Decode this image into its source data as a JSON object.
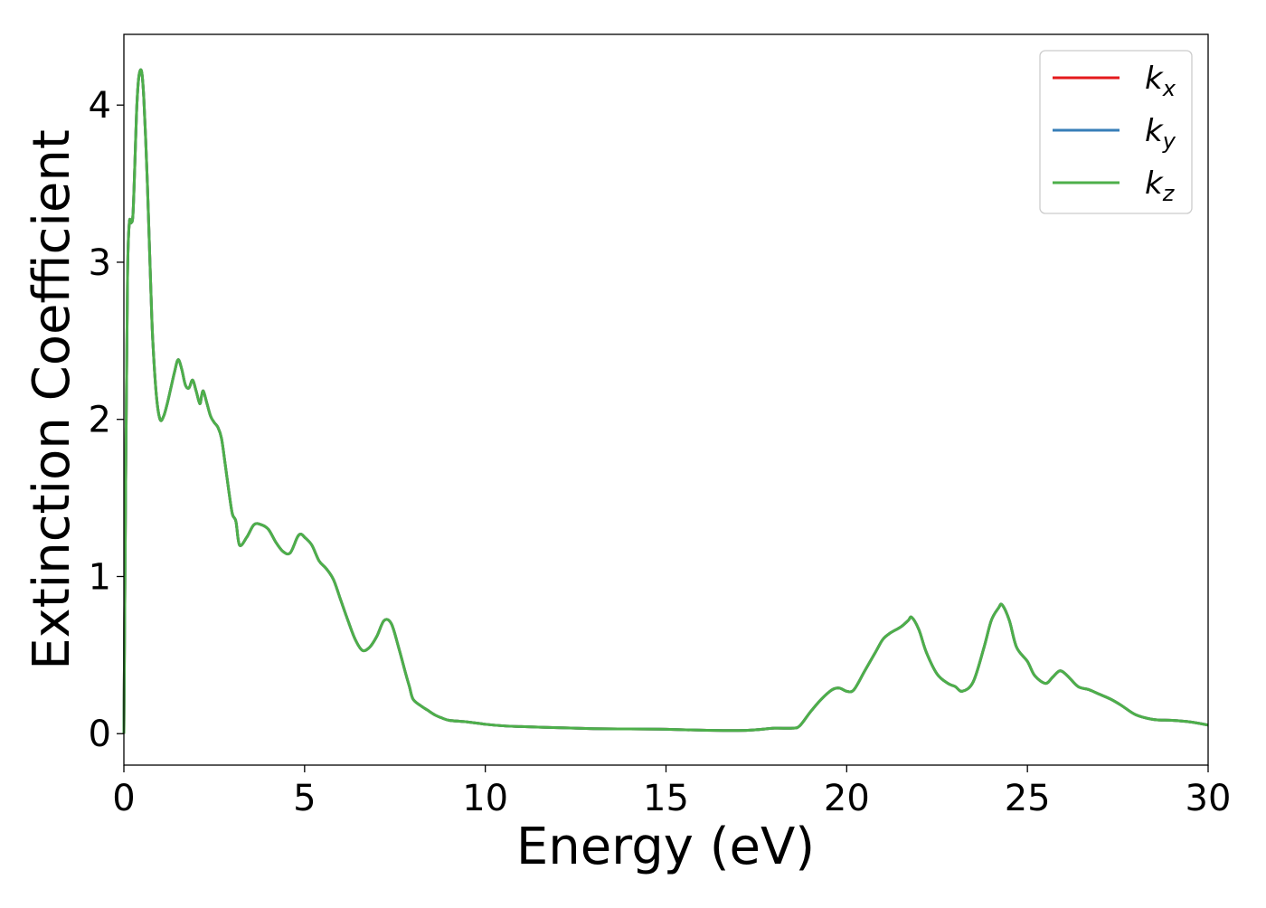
{
  "chart_data": {
    "type": "line",
    "title": "",
    "xlabel": "Energy (eV)",
    "ylabel": "Extinction Coefficient",
    "xlim": [
      0,
      30
    ],
    "ylim": [
      -0.2,
      4.45
    ],
    "xticks": [
      0,
      5,
      10,
      15,
      20,
      25,
      30
    ],
    "xtick_labels": [
      "0",
      "5",
      "10",
      "15",
      "20",
      "25",
      "30"
    ],
    "yticks": [
      0,
      1,
      2,
      3,
      4
    ],
    "ytick_labels": [
      "0",
      "1",
      "2",
      "3",
      "4"
    ],
    "grid": false,
    "legend_position": "top-right",
    "x": [
      0,
      0.05,
      0.1,
      0.15,
      0.2,
      0.25,
      0.3,
      0.35,
      0.4,
      0.45,
      0.5,
      0.55,
      0.6,
      0.65,
      0.7,
      0.75,
      0.8,
      0.9,
      1.0,
      1.1,
      1.2,
      1.3,
      1.4,
      1.5,
      1.6,
      1.7,
      1.8,
      1.9,
      2.0,
      2.1,
      2.15,
      2.2,
      2.3,
      2.4,
      2.5,
      2.6,
      2.7,
      2.8,
      2.9,
      3.0,
      3.1,
      3.2,
      3.4,
      3.6,
      3.8,
      4.0,
      4.2,
      4.4,
      4.6,
      4.8,
      4.9,
      5.0,
      5.2,
      5.4,
      5.6,
      5.8,
      6.0,
      6.2,
      6.4,
      6.6,
      6.8,
      7.0,
      7.2,
      7.4,
      7.6,
      7.8,
      7.9,
      8.0,
      8.2,
      8.4,
      8.6,
      8.8,
      9.0,
      9.5,
      10,
      10.5,
      11,
      12,
      13,
      14,
      15,
      16,
      17,
      17.5,
      18,
      18.5,
      18.7,
      19,
      19.3,
      19.6,
      19.8,
      20,
      20.2,
      20.5,
      20.8,
      21,
      21.2,
      21.5,
      21.7,
      21.8,
      22,
      22.2,
      22.5,
      22.8,
      23,
      23.2,
      23.5,
      23.8,
      24,
      24.2,
      24.3,
      24.5,
      24.7,
      25,
      25.2,
      25.5,
      25.7,
      25.9,
      26.1,
      26.4,
      26.7,
      27,
      27.3,
      27.6,
      28,
      28.5,
      29,
      29.5,
      30
    ],
    "series": [
      {
        "name": "k_x",
        "color": "#e41a1c",
        "values": [
          0.0,
          1.6,
          2.9,
          3.25,
          3.25,
          3.3,
          3.6,
          3.95,
          4.15,
          4.22,
          4.2,
          4.05,
          3.8,
          3.5,
          3.15,
          2.8,
          2.5,
          2.15,
          2.0,
          2.02,
          2.1,
          2.2,
          2.3,
          2.38,
          2.32,
          2.22,
          2.2,
          2.25,
          2.18,
          2.1,
          2.15,
          2.18,
          2.1,
          2.02,
          1.98,
          1.95,
          1.88,
          1.72,
          1.55,
          1.4,
          1.35,
          1.2,
          1.25,
          1.33,
          1.33,
          1.3,
          1.22,
          1.16,
          1.15,
          1.25,
          1.27,
          1.25,
          1.2,
          1.1,
          1.05,
          0.98,
          0.85,
          0.72,
          0.6,
          0.53,
          0.55,
          0.62,
          0.72,
          0.7,
          0.55,
          0.38,
          0.3,
          0.22,
          0.18,
          0.15,
          0.12,
          0.1,
          0.085,
          0.075,
          0.06,
          0.05,
          0.045,
          0.038,
          0.032,
          0.03,
          0.028,
          0.022,
          0.02,
          0.025,
          0.035,
          0.035,
          0.05,
          0.14,
          0.22,
          0.28,
          0.29,
          0.27,
          0.28,
          0.4,
          0.52,
          0.6,
          0.64,
          0.68,
          0.72,
          0.74,
          0.66,
          0.52,
          0.38,
          0.32,
          0.3,
          0.27,
          0.33,
          0.55,
          0.72,
          0.8,
          0.82,
          0.72,
          0.55,
          0.46,
          0.37,
          0.32,
          0.36,
          0.4,
          0.37,
          0.3,
          0.28,
          0.25,
          0.22,
          0.18,
          0.12,
          0.09,
          0.085,
          0.075,
          0.055
        ]
      },
      {
        "name": "k_y",
        "color": "#377eb8",
        "values": [
          0.0,
          1.6,
          2.9,
          3.25,
          3.25,
          3.3,
          3.6,
          3.95,
          4.15,
          4.22,
          4.2,
          4.05,
          3.8,
          3.5,
          3.15,
          2.8,
          2.5,
          2.15,
          2.0,
          2.02,
          2.1,
          2.2,
          2.3,
          2.38,
          2.32,
          2.22,
          2.2,
          2.25,
          2.18,
          2.1,
          2.15,
          2.18,
          2.1,
          2.02,
          1.98,
          1.95,
          1.88,
          1.72,
          1.55,
          1.4,
          1.35,
          1.2,
          1.25,
          1.33,
          1.33,
          1.3,
          1.22,
          1.16,
          1.15,
          1.25,
          1.27,
          1.25,
          1.2,
          1.1,
          1.05,
          0.98,
          0.85,
          0.72,
          0.6,
          0.53,
          0.55,
          0.62,
          0.72,
          0.7,
          0.55,
          0.38,
          0.3,
          0.22,
          0.18,
          0.15,
          0.12,
          0.1,
          0.085,
          0.075,
          0.06,
          0.05,
          0.045,
          0.038,
          0.032,
          0.03,
          0.028,
          0.022,
          0.02,
          0.025,
          0.035,
          0.035,
          0.05,
          0.14,
          0.22,
          0.28,
          0.29,
          0.27,
          0.28,
          0.4,
          0.52,
          0.6,
          0.64,
          0.68,
          0.72,
          0.74,
          0.66,
          0.52,
          0.38,
          0.32,
          0.3,
          0.27,
          0.33,
          0.55,
          0.72,
          0.8,
          0.82,
          0.72,
          0.55,
          0.46,
          0.37,
          0.32,
          0.36,
          0.4,
          0.37,
          0.3,
          0.28,
          0.25,
          0.22,
          0.18,
          0.12,
          0.09,
          0.085,
          0.075,
          0.055
        ]
      },
      {
        "name": "k_z",
        "color": "#4daf4a",
        "values": [
          0.0,
          1.6,
          2.9,
          3.25,
          3.25,
          3.3,
          3.6,
          3.95,
          4.15,
          4.22,
          4.2,
          4.05,
          3.8,
          3.5,
          3.15,
          2.8,
          2.5,
          2.15,
          2.0,
          2.02,
          2.1,
          2.2,
          2.3,
          2.38,
          2.32,
          2.22,
          2.2,
          2.25,
          2.18,
          2.1,
          2.15,
          2.18,
          2.1,
          2.02,
          1.98,
          1.95,
          1.88,
          1.72,
          1.55,
          1.4,
          1.35,
          1.2,
          1.25,
          1.33,
          1.33,
          1.3,
          1.22,
          1.16,
          1.15,
          1.25,
          1.27,
          1.25,
          1.2,
          1.1,
          1.05,
          0.98,
          0.85,
          0.72,
          0.6,
          0.53,
          0.55,
          0.62,
          0.72,
          0.7,
          0.55,
          0.38,
          0.3,
          0.22,
          0.18,
          0.15,
          0.12,
          0.1,
          0.085,
          0.075,
          0.06,
          0.05,
          0.045,
          0.038,
          0.032,
          0.03,
          0.028,
          0.022,
          0.02,
          0.025,
          0.035,
          0.035,
          0.05,
          0.14,
          0.22,
          0.28,
          0.29,
          0.27,
          0.28,
          0.4,
          0.52,
          0.6,
          0.64,
          0.68,
          0.72,
          0.74,
          0.66,
          0.52,
          0.38,
          0.32,
          0.3,
          0.27,
          0.33,
          0.55,
          0.72,
          0.8,
          0.82,
          0.72,
          0.55,
          0.46,
          0.37,
          0.32,
          0.36,
          0.4,
          0.37,
          0.3,
          0.28,
          0.25,
          0.22,
          0.18,
          0.12,
          0.09,
          0.085,
          0.075,
          0.055
        ]
      }
    ],
    "legend": [
      {
        "base": "k",
        "sub": "x",
        "color": "#e41a1c"
      },
      {
        "base": "k",
        "sub": "y",
        "color": "#377eb8"
      },
      {
        "base": "k",
        "sub": "z",
        "color": "#4daf4a"
      }
    ]
  }
}
